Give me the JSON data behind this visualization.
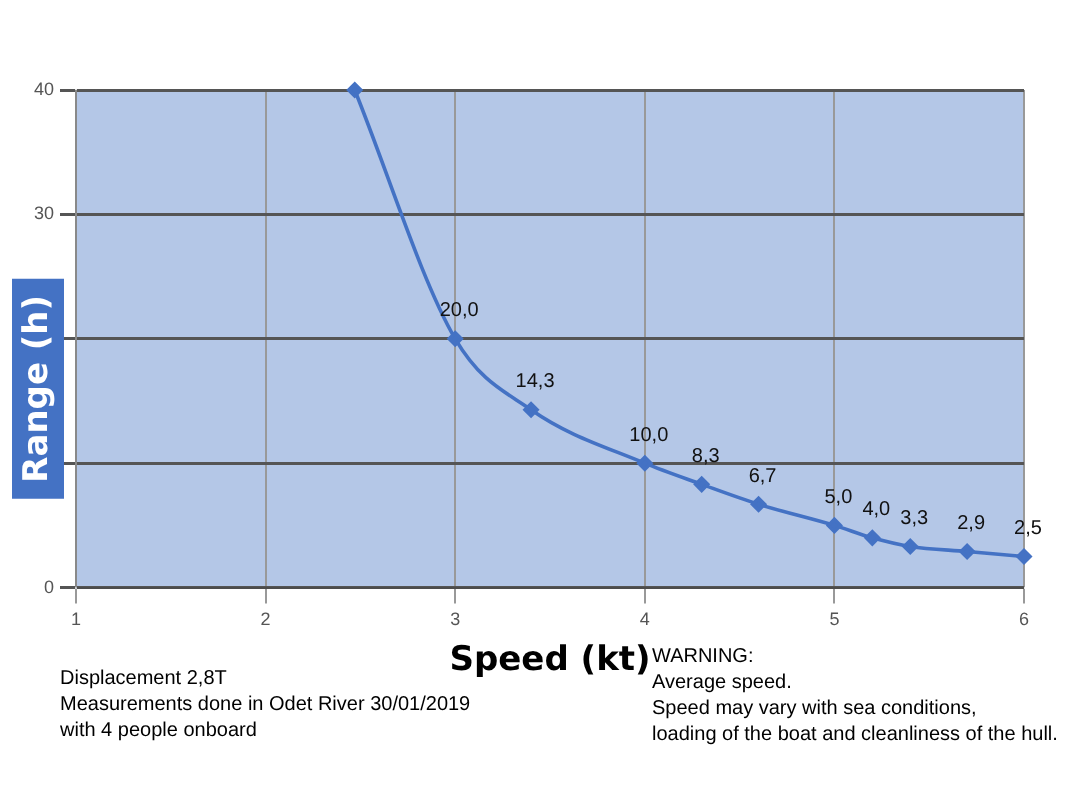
{
  "chart_data": {
    "type": "line",
    "xlabel": "Speed (kt)",
    "ylabel": "Range (h)",
    "x": [
      2.47,
      3,
      3.4,
      4,
      4.3,
      4.6,
      5,
      5.2,
      5.4,
      5.7,
      6
    ],
    "values": [
      40,
      20.0,
      14.3,
      10.0,
      8.3,
      6.7,
      5.0,
      4.0,
      3.3,
      2.9,
      2.5
    ],
    "value_labels": [
      null,
      "20,0",
      "14,3",
      "10,0",
      "8,3",
      "6,7",
      "5,0",
      "4,0",
      "3,3",
      "2,9",
      "2,5"
    ],
    "color": "#4472c4",
    "marker": "diamond",
    "line_style": "solid",
    "xlim": [
      1,
      6
    ],
    "xticks": [
      1,
      2,
      3,
      4,
      5,
      6
    ],
    "ylim": [
      0,
      40
    ],
    "yticks": [
      0,
      {
        "value": 10,
        "label": null
      },
      {
        "value": 20,
        "label": null
      },
      30,
      40
    ],
    "grid": true,
    "annotations": [
      "Displacement 2,8T",
      "Measurements done in Odet River 30/01/2019\nwith 4 people onboard",
      "WARNING:\nAverage speed.\nSpeed may vary with sea conditions,\nloading of the boat and cleanliness of the hull."
    ]
  }
}
